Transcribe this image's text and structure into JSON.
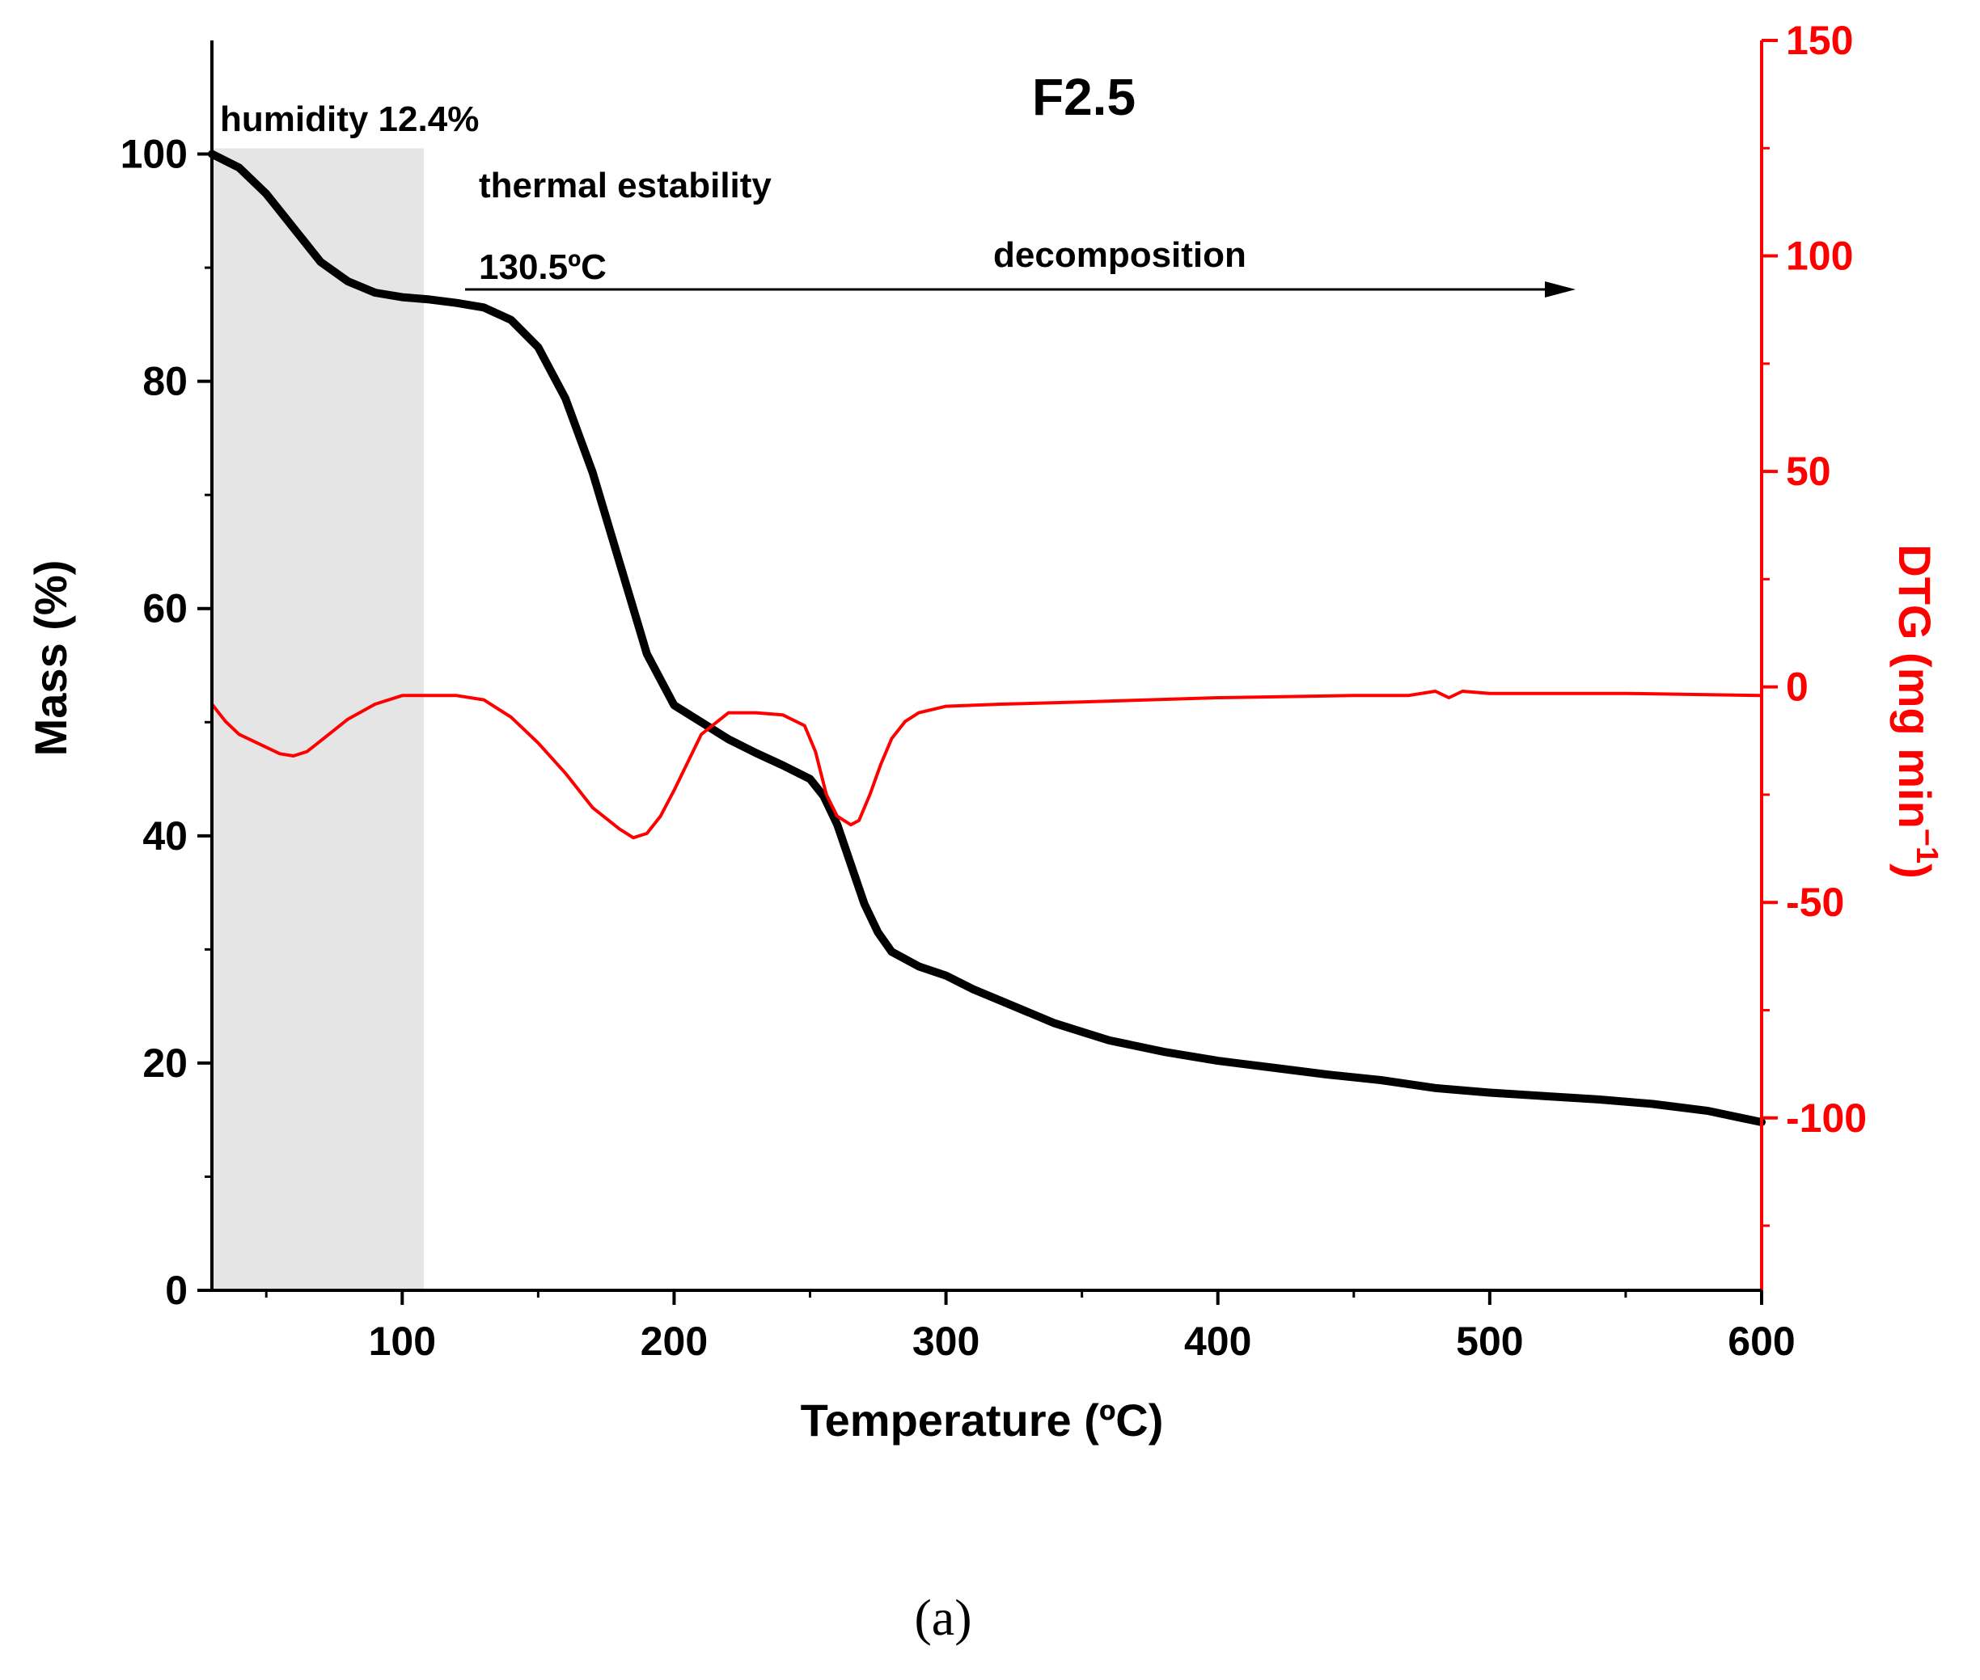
{
  "chart_data": {
    "type": "line",
    "title": "F2.5",
    "xlabel": "Temperature (ºC)",
    "ylabel_left": "Mass (%)",
    "ylabel_right": {
      "main": "DTG (mg min",
      "sup": "−1",
      "close": ")"
    },
    "xlim": [
      30,
      600
    ],
    "ylim_left": [
      0,
      110
    ],
    "ylim_right": [
      -140,
      150
    ],
    "x_ticks": [
      100,
      200,
      300,
      400,
      500,
      600
    ],
    "x_tick_labels": [
      "100",
      "200",
      "300",
      "400",
      "500",
      "600"
    ],
    "y_left_ticks": [
      0,
      20,
      40,
      60,
      80,
      100
    ],
    "y_left_tick_labels": [
      "0",
      "20",
      "40",
      "60",
      "80",
      "100"
    ],
    "y_right_ticks": [
      -100,
      -50,
      0,
      50,
      100,
      150
    ],
    "y_right_tick_labels": [
      "-100",
      "-50",
      "0",
      "50",
      "100",
      "150"
    ],
    "colors": {
      "mass": "#000000",
      "dtg": "#ff0000",
      "shade": "#e5e5e5",
      "right_axis": "#ff0000"
    },
    "shaded_region": {
      "x_start": 30,
      "x_end": 108,
      "y_top": 100.5
    },
    "series": [
      {
        "name": "Mass",
        "axis": "left",
        "x": [
          30,
          40,
          50,
          60,
          70,
          80,
          90,
          100,
          110,
          120,
          130,
          140,
          150,
          160,
          170,
          180,
          190,
          200,
          210,
          220,
          230,
          240,
          250,
          255,
          260,
          265,
          270,
          275,
          280,
          290,
          300,
          310,
          320,
          340,
          360,
          380,
          400,
          420,
          440,
          460,
          480,
          500,
          520,
          540,
          560,
          580,
          600
        ],
        "y": [
          100,
          98.8,
          96.5,
          93.5,
          90.5,
          88.8,
          87.8,
          87.4,
          87.2,
          86.9,
          86.5,
          85.4,
          83,
          78.5,
          72,
          64,
          56,
          51.5,
          50,
          48.5,
          47.3,
          46.2,
          45,
          43.5,
          41,
          37.5,
          34,
          31.5,
          29.8,
          28.5,
          27.7,
          26.5,
          25.5,
          23.5,
          22,
          21,
          20.2,
          19.6,
          19,
          18.5,
          17.8,
          17.4,
          17.1,
          16.8,
          16.4,
          15.8,
          14.8
        ]
      },
      {
        "name": "DTG",
        "axis": "right",
        "x": [
          30,
          35,
          40,
          50,
          55,
          60,
          65,
          70,
          80,
          90,
          100,
          110,
          120,
          130,
          140,
          150,
          160,
          170,
          180,
          185,
          190,
          195,
          200,
          210,
          220,
          230,
          240,
          248,
          252,
          256,
          260,
          265,
          268,
          272,
          276,
          280,
          285,
          290,
          300,
          320,
          350,
          400,
          450,
          470,
          480,
          485,
          490,
          500,
          550,
          600
        ],
        "y": [
          -4,
          -8,
          -11,
          -14,
          -15.5,
          -16,
          -15,
          -12.5,
          -7.5,
          -4,
          -2,
          -2,
          -2,
          -3,
          -7,
          -13,
          -20,
          -28,
          -33,
          -35,
          -34,
          -30,
          -24,
          -11,
          -6,
          -6,
          -6.5,
          -9,
          -15,
          -25,
          -30,
          -32,
          -31,
          -25,
          -18,
          -12,
          -8,
          -6,
          -4.5,
          -4,
          -3.5,
          -2.5,
          -2,
          -2,
          -1,
          -2.5,
          -1,
          -1.5,
          -1.5,
          -2
        ]
      }
    ],
    "annotations": [
      {
        "text": "humidity 12.4%"
      },
      {
        "text": "thermal estability"
      },
      {
        "text": "130.5ºC"
      },
      {
        "text": "decomposition"
      }
    ],
    "caption": "(a)"
  }
}
